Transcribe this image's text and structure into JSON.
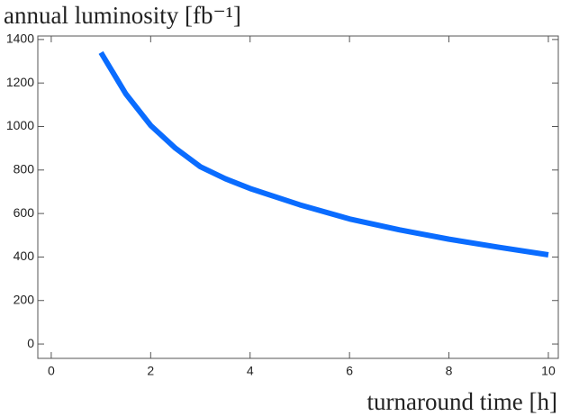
{
  "chart_data": {
    "type": "line",
    "ylabel": "annual luminosity [fb⁻¹]",
    "xlabel": "turnaround time [h]",
    "x": [
      1,
      1.5,
      2,
      2.5,
      3,
      3.5,
      4,
      5,
      6,
      7,
      8,
      9,
      10
    ],
    "series": [
      {
        "color": "#0a6cff",
        "values": [
          1340,
          1150,
          1005,
          900,
          815,
          760,
          715,
          640,
          575,
          525,
          482,
          445,
          410
        ]
      }
    ],
    "xlim": [
      -0.27,
      10.2
    ],
    "ylim": [
      -66,
      1416
    ],
    "xticks": [
      0,
      2,
      4,
      6,
      8,
      10
    ],
    "yticks": [
      0,
      200,
      400,
      600,
      800,
      1000,
      1200,
      1400
    ]
  }
}
